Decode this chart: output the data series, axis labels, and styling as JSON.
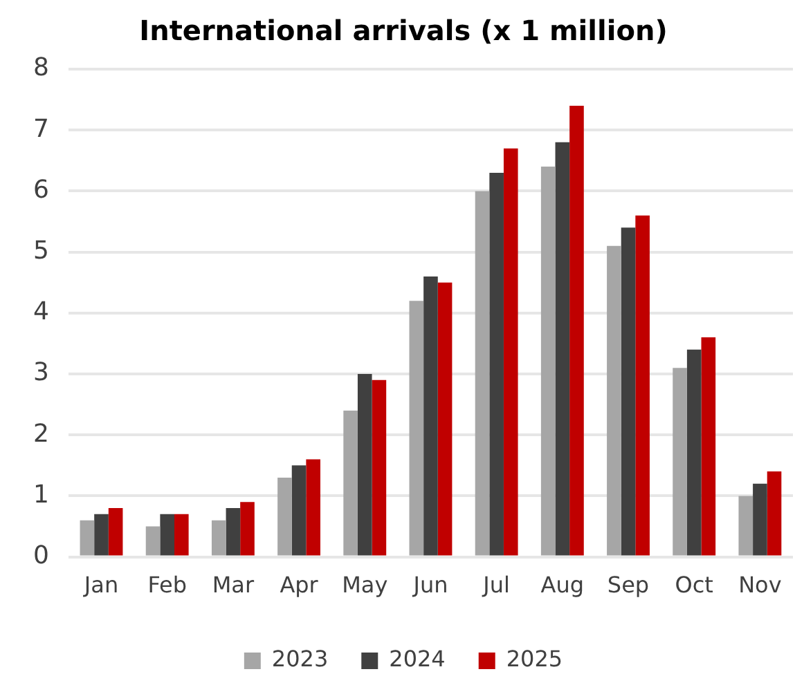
{
  "chart_data": {
    "type": "bar",
    "title": "International arrivals (x 1 million)",
    "categories": [
      "Jan",
      "Feb",
      "Mar",
      "Apr",
      "May",
      "Jun",
      "Jul",
      "Aug",
      "Sep",
      "Oct",
      "Nov"
    ],
    "series": [
      {
        "name": "2023",
        "color": "#a6a6a6",
        "values": [
          0.6,
          0.5,
          0.6,
          1.3,
          2.4,
          4.2,
          6.0,
          6.4,
          5.1,
          3.1,
          1.0
        ]
      },
      {
        "name": "2024",
        "color": "#404040",
        "values": [
          0.7,
          0.7,
          0.8,
          1.5,
          3.0,
          4.6,
          6.3,
          6.8,
          5.4,
          3.4,
          1.2
        ]
      },
      {
        "name": "2025",
        "color": "#c00000",
        "values": [
          0.8,
          0.7,
          0.9,
          1.6,
          2.9,
          4.5,
          6.7,
          7.4,
          5.6,
          3.6,
          1.4
        ]
      }
    ],
    "ylim": [
      0,
      8
    ],
    "yticks": [
      0,
      1,
      2,
      3,
      4,
      5,
      6,
      7,
      8
    ],
    "grid": "y",
    "legend": "bottom"
  }
}
